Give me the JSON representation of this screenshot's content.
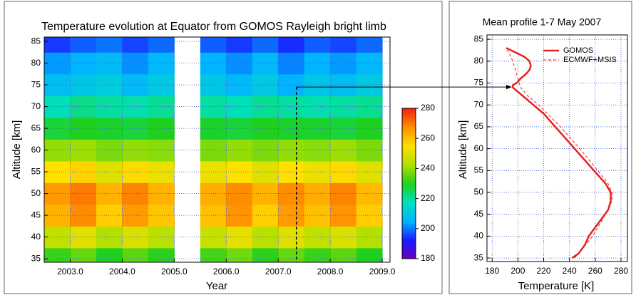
{
  "chart_data": [
    {
      "type": "heatmap",
      "title": "Temperature evolution at Equator from GOMOS Rayleigh bright limb",
      "xlabel": "Year",
      "ylabel": "Altitude [km]",
      "x": [
        2002.75,
        2003.25,
        2003.75,
        2004.25,
        2004.75,
        2005.25,
        2005.75,
        2006.25,
        2006.75,
        2007.25,
        2007.75,
        2008.25,
        2008.75
      ],
      "y": [
        35,
        40,
        45,
        50,
        55,
        60,
        65,
        70,
        75,
        80,
        85
      ],
      "z": [
        [
          232,
          236,
          230,
          235,
          231,
          null,
          233,
          237,
          231,
          236,
          232,
          235,
          230
        ],
        [
          245,
          250,
          243,
          249,
          244,
          null,
          246,
          251,
          244,
          250,
          245,
          249,
          243
        ],
        [
          262,
          268,
          258,
          266,
          259,
          null,
          260,
          267,
          258,
          266,
          260,
          267,
          258
        ],
        [
          266,
          270,
          262,
          269,
          262,
          null,
          263,
          268,
          262,
          268,
          263,
          269,
          261
        ],
        [
          255,
          257,
          250,
          256,
          252,
          null,
          252,
          255,
          250,
          255,
          252,
          256,
          250
        ],
        [
          240,
          241,
          238,
          240,
          239,
          null,
          238,
          240,
          238,
          240,
          239,
          241,
          238
        ],
        [
          228,
          230,
          229,
          228,
          230,
          null,
          229,
          228,
          230,
          229,
          229,
          228,
          230
        ],
        [
          218,
          222,
          220,
          219,
          221,
          null,
          220,
          218,
          221,
          220,
          219,
          220,
          221
        ],
        [
          208,
          210,
          212,
          207,
          211,
          null,
          210,
          206,
          211,
          205,
          210,
          208,
          211
        ],
        [
          203,
          205,
          207,
          202,
          206,
          null,
          205,
          202,
          206,
          201,
          205,
          203,
          206
        ],
        [
          195,
          198,
          200,
          196,
          199,
          null,
          198,
          195,
          199,
          194,
          198,
          196,
          199
        ]
      ],
      "xlim": [
        2002.5,
        2009.15
      ],
      "ylim": [
        34.2,
        86
      ],
      "xticks": [
        {
          "value": 2003,
          "label": "2003.0"
        },
        {
          "value": 2004,
          "label": "2004.0"
        },
        {
          "value": 2005,
          "label": "2005.0"
        },
        {
          "value": 2006,
          "label": "2006.0"
        },
        {
          "value": 2007,
          "label": "2007.0"
        },
        {
          "value": 2008,
          "label": "2008.0"
        },
        {
          "value": 2009,
          "label": "2009.0"
        }
      ],
      "yticks": [
        35,
        40,
        45,
        50,
        55,
        60,
        65,
        70,
        75,
        80,
        85
      ],
      "zlim": [
        180,
        280
      ],
      "zticks": [
        180,
        200,
        220,
        240,
        260,
        280
      ],
      "colorscale": [
        "#6a00c0",
        "#1a1aff",
        "#00b4ff",
        "#00e0c0",
        "#20d020",
        "#b0e000",
        "#ffe000",
        "#ff9000",
        "#f02010"
      ],
      "grid": true,
      "vline": 2007.35,
      "arrow_y": 74.5
    },
    {
      "type": "line",
      "title": "Mean profile 1-7 May 2007",
      "xlabel": "Temperature [K]",
      "ylabel": "Altitude [km]",
      "xlim": [
        176,
        285
      ],
      "ylim": [
        34.2,
        86
      ],
      "xticks": [
        180,
        200,
        220,
        240,
        260,
        280
      ],
      "yticks": [
        35,
        40,
        45,
        50,
        55,
        60,
        65,
        70,
        75,
        80,
        85
      ],
      "grid": true,
      "legend": "upper right",
      "series": [
        {
          "name": "GOMOS",
          "color": "#e8201e",
          "style": "solid",
          "values": [
            242,
            247,
            252,
            255,
            260,
            265,
            270,
            272,
            272,
            268,
            262,
            256,
            250,
            244,
            238,
            232,
            226,
            220,
            212,
            204,
            200,
            196,
            196,
            199,
            202,
            206,
            209,
            210,
            209,
            205,
            198,
            191
          ],
          "altitudes": [
            35,
            36,
            38,
            40,
            42,
            44,
            46,
            48,
            50,
            52,
            54,
            56,
            58,
            60,
            62,
            64,
            66,
            68,
            70,
            72,
            73,
            74,
            74.5,
            75,
            76,
            77,
            78,
            79,
            80,
            81,
            82,
            83
          ]
        },
        {
          "name": "ECMWF+MSIS",
          "color": "#e8201e",
          "style": "dashed",
          "values": [
            244,
            258,
            268,
            273,
            273,
            270,
            262,
            248,
            233,
            216,
            208,
            202,
            200,
            198,
            196,
            193,
            190
          ],
          "altitudes": [
            35,
            40,
            45,
            48,
            50,
            52,
            55,
            60,
            65,
            70,
            72,
            74,
            76,
            78,
            80,
            82,
            83
          ]
        }
      ]
    }
  ]
}
